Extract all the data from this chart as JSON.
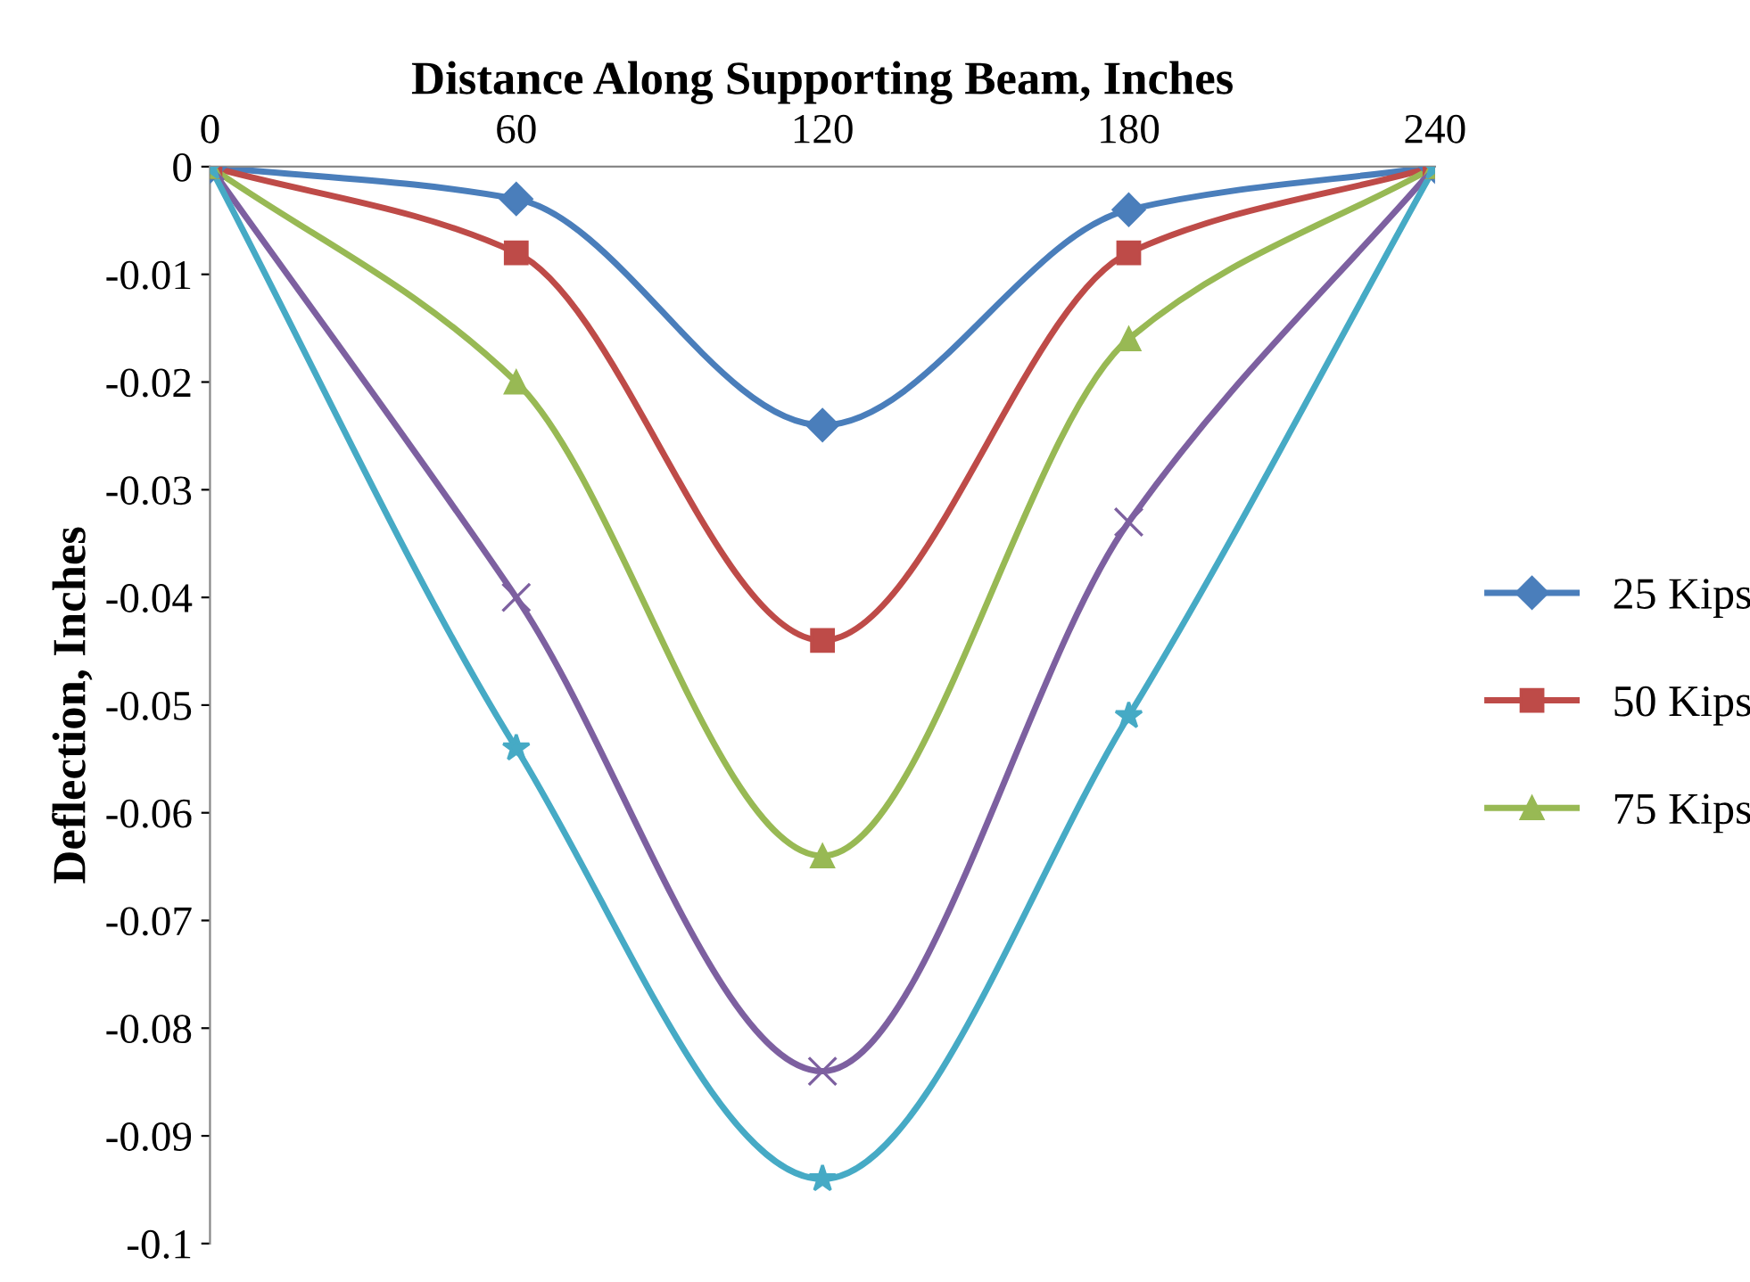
{
  "chart_data": {
    "type": "line",
    "xlabel": "Distance Along Supporting Beam, Inches",
    "ylabel": "Deflection, Inches",
    "x": [
      0,
      60,
      120,
      180,
      240
    ],
    "xlim": [
      0,
      240
    ],
    "xticks": [
      0,
      60,
      120,
      180,
      240
    ],
    "ylim": [
      -0.1,
      0
    ],
    "yticks": [
      0,
      -0.01,
      -0.02,
      -0.03,
      -0.04,
      -0.05,
      -0.06,
      -0.07,
      -0.08,
      -0.09,
      -0.1
    ],
    "grid": false,
    "legend": "right",
    "series": [
      {
        "name": "25 Kips",
        "color": "#4a7ebb",
        "marker": "diamond",
        "values": [
          0,
          -0.003,
          -0.024,
          -0.004,
          0
        ]
      },
      {
        "name": "50 Kips",
        "color": "#be4b48",
        "marker": "square",
        "values": [
          0,
          -0.008,
          -0.044,
          -0.008,
          0
        ]
      },
      {
        "name": "75 Kips",
        "color": "#98b954",
        "marker": "triangle",
        "values": [
          0,
          -0.02,
          -0.064,
          -0.016,
          0
        ]
      },
      {
        "color": "#7d60a0",
        "marker": "cross",
        "values": [
          0,
          -0.04,
          -0.084,
          -0.033,
          0
        ]
      },
      {
        "color": "#46aac5",
        "marker": "star",
        "values": [
          0,
          -0.054,
          -0.094,
          -0.051,
          0
        ]
      }
    ]
  }
}
